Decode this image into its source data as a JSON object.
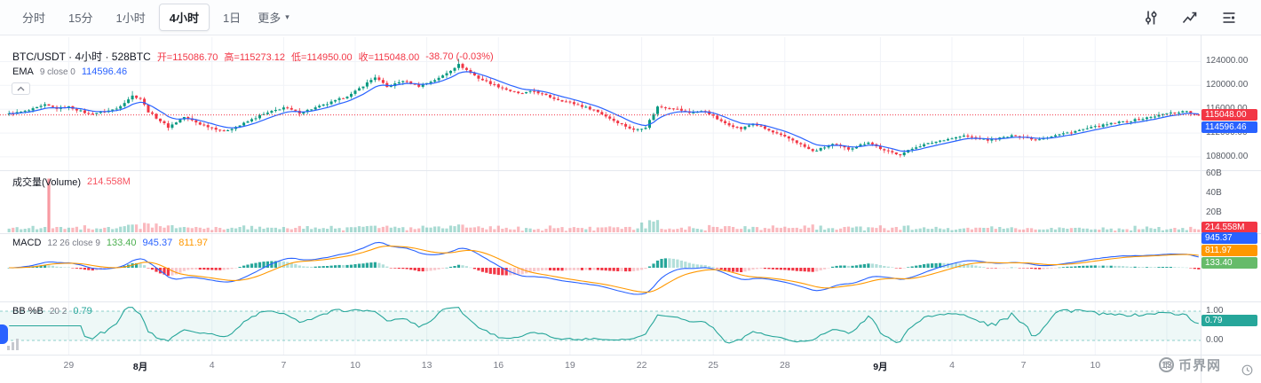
{
  "toolbar": {
    "intervals": [
      {
        "label": "分时",
        "active": false
      },
      {
        "label": "15分",
        "active": false
      },
      {
        "label": "1小时",
        "active": false
      },
      {
        "label": "4小时",
        "active": true
      },
      {
        "label": "1日",
        "active": false
      }
    ],
    "more": {
      "label": "更多",
      "caret": "▾"
    }
  },
  "legend": {
    "title": "BTC/USDT · 4小时 · 528BTC",
    "open": "开=115086.70",
    "high": "高=115273.12",
    "low": "低=114950.00",
    "close": "收=115048.00",
    "change": "-38.70 (-0.03%)",
    "ema_name": "EMA",
    "ema_params": "9 close 0",
    "ema_value": "114596.46",
    "volume_name": "成交量(Volume)",
    "volume_value": "214.558M",
    "macd_name": "MACD",
    "macd_params": "12 26 close 9",
    "macd_hist": "133.40",
    "macd_line": "945.37",
    "macd_signal": "811.97",
    "bb_name": "BB %B",
    "bb_params": "20 2",
    "bb_value": "0.79"
  },
  "badges": {
    "last_price": {
      "text": "115048.00",
      "bg": "#f23645"
    },
    "ema": {
      "text": "114596.46",
      "bg": "#2962ff"
    },
    "volume": {
      "text": "214.558M",
      "bg": "#f23645"
    },
    "macd_line": {
      "text": "945.37",
      "bg": "#2962ff"
    },
    "macd_signal": {
      "text": "811.97",
      "bg": "#ff9800"
    },
    "macd_hist": {
      "text": "133.40",
      "bg": "#66bb6a"
    },
    "bb": {
      "text": "0.79",
      "bg": "#26a69a"
    }
  },
  "axes": {
    "price_ticks": [
      "124000.00",
      "120000.00",
      "116000.00",
      "112000.00",
      "108000.00"
    ],
    "volume_ticks": [
      "60B",
      "40B",
      "20B"
    ],
    "bb_ticks": [
      "1.00",
      "0.00"
    ],
    "time_ticks": [
      {
        "label": "29",
        "bar": 15
      },
      {
        "label": "8月",
        "bar": 33
      },
      {
        "label": "4",
        "bar": 51
      },
      {
        "label": "7",
        "bar": 69
      },
      {
        "label": "10",
        "bar": 87
      },
      {
        "label": "13",
        "bar": 105
      },
      {
        "label": "16",
        "bar": 123
      },
      {
        "label": "19",
        "bar": 141
      },
      {
        "label": "22",
        "bar": 159
      },
      {
        "label": "25",
        "bar": 177
      },
      {
        "label": "28",
        "bar": 195
      },
      {
        "label": "9月",
        "bar": 219
      },
      {
        "label": "4",
        "bar": 237
      },
      {
        "label": "7",
        "bar": 255
      },
      {
        "label": "10",
        "bar": 273
      },
      {
        "label": "13",
        "bar": 291
      }
    ]
  },
  "watermark": {
    "text": "币界网",
    "logo_char": "币"
  },
  "chart_data": {
    "type": "candlestick",
    "symbol": "BTC/USDT",
    "interval": "4小时",
    "bars_label": "528BTC",
    "last_bar": {
      "open": 115086.7,
      "high": 115273.12,
      "low": 114950.0,
      "close": 115048.0,
      "change": -38.7,
      "change_pct_text": "-0.03%"
    },
    "indicators": {
      "ema9_last": 114596.46,
      "volume_last": "214.558M",
      "macd_last": {
        "hist": 133.4,
        "macd": 945.37,
        "signal": 811.97
      },
      "bb_percent_b_last": 0.79
    },
    "price_axis_range": [
      105900,
      127500
    ],
    "volume_axis_B": [
      0,
      60
    ],
    "bb_axis": [
      0,
      1
    ],
    "bar_count": 300,
    "close_anchors": [
      [
        0,
        115200
      ],
      [
        5,
        115800
      ],
      [
        9,
        116700
      ],
      [
        12,
        116150
      ],
      [
        15,
        116400
      ],
      [
        20,
        115200
      ],
      [
        24,
        115600
      ],
      [
        27,
        116100
      ],
      [
        31,
        118250
      ],
      [
        33,
        117800
      ],
      [
        35,
        115600
      ],
      [
        40,
        113000
      ],
      [
        44,
        114700
      ],
      [
        48,
        113500
      ],
      [
        54,
        112300
      ],
      [
        58,
        113300
      ],
      [
        63,
        114900
      ],
      [
        69,
        116300
      ],
      [
        73,
        115400
      ],
      [
        80,
        116900
      ],
      [
        86,
        118500
      ],
      [
        92,
        121400
      ],
      [
        95,
        119700
      ],
      [
        99,
        120800
      ],
      [
        103,
        119900
      ],
      [
        108,
        121200
      ],
      [
        113,
        123500
      ],
      [
        118,
        121200
      ],
      [
        123,
        119800
      ],
      [
        128,
        118600
      ],
      [
        132,
        119000
      ],
      [
        137,
        117800
      ],
      [
        141,
        117100
      ],
      [
        147,
        115900
      ],
      [
        152,
        114100
      ],
      [
        157,
        112500
      ],
      [
        160,
        113000
      ],
      [
        163,
        116400
      ],
      [
        167,
        116200
      ],
      [
        171,
        115400
      ],
      [
        175,
        115700
      ],
      [
        179,
        113900
      ],
      [
        184,
        112700
      ],
      [
        187,
        113600
      ],
      [
        192,
        112100
      ],
      [
        197,
        110800
      ],
      [
        202,
        108900
      ],
      [
        207,
        110100
      ],
      [
        211,
        109300
      ],
      [
        216,
        110500
      ],
      [
        220,
        109000
      ],
      [
        224,
        108400
      ],
      [
        228,
        109700
      ],
      [
        235,
        110900
      ],
      [
        240,
        111500
      ],
      [
        246,
        110800
      ],
      [
        253,
        111600
      ],
      [
        258,
        110900
      ],
      [
        265,
        111900
      ],
      [
        272,
        112900
      ],
      [
        278,
        113700
      ],
      [
        285,
        114400
      ],
      [
        291,
        115300
      ],
      [
        296,
        115700
      ],
      [
        298,
        115086.7
      ],
      [
        299,
        115048
      ]
    ],
    "volume_spikes_B": {
      "10": 55,
      "32": 8,
      "35": 9,
      "40": 7,
      "113": 8,
      "159": 10,
      "162": 11,
      "192": 7,
      "202": 8
    }
  }
}
